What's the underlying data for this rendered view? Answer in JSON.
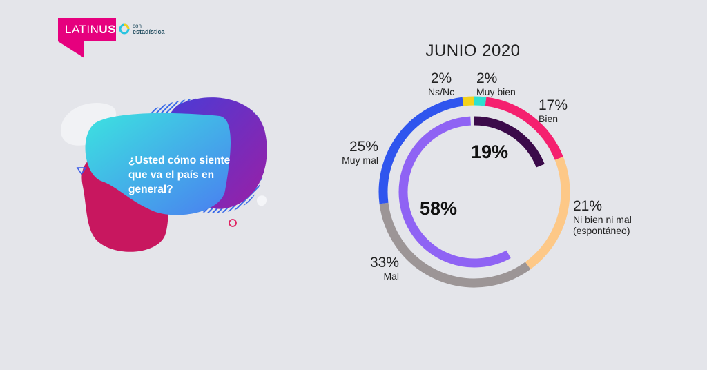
{
  "brand": {
    "name_light": "LATIN",
    "name_bold": "US",
    "partner_top": "con",
    "partner_bottom": "estadística"
  },
  "question": "¿Usted cómo siente que va el país en general?",
  "chart_data": {
    "type": "pie",
    "title": "JUNIO 2020",
    "outer": [
      {
        "label": "Ns/Nc",
        "value": 2,
        "display": "2%",
        "color": "#f3d21c"
      },
      {
        "label": "Muy bien",
        "value": 2,
        "display": "2%",
        "color": "#2ee0d0"
      },
      {
        "label": "Bien",
        "value": 17,
        "display": "17%",
        "color": "#f5206f"
      },
      {
        "label": "Ni bien ni mal\n(espontáneo)",
        "value": 21,
        "display": "21%",
        "color": "#fdc887"
      },
      {
        "label": "Mal",
        "value": 33,
        "display": "33%",
        "color": "#9c9596"
      },
      {
        "label": "Muy mal",
        "value": 25,
        "display": "25%",
        "color": "#2f55ee"
      }
    ],
    "inner": [
      {
        "label": "19%",
        "value": 19,
        "color": "#3b0a4a"
      },
      {
        "label": "58%",
        "value": 58,
        "color": "#8f63f4"
      }
    ]
  }
}
